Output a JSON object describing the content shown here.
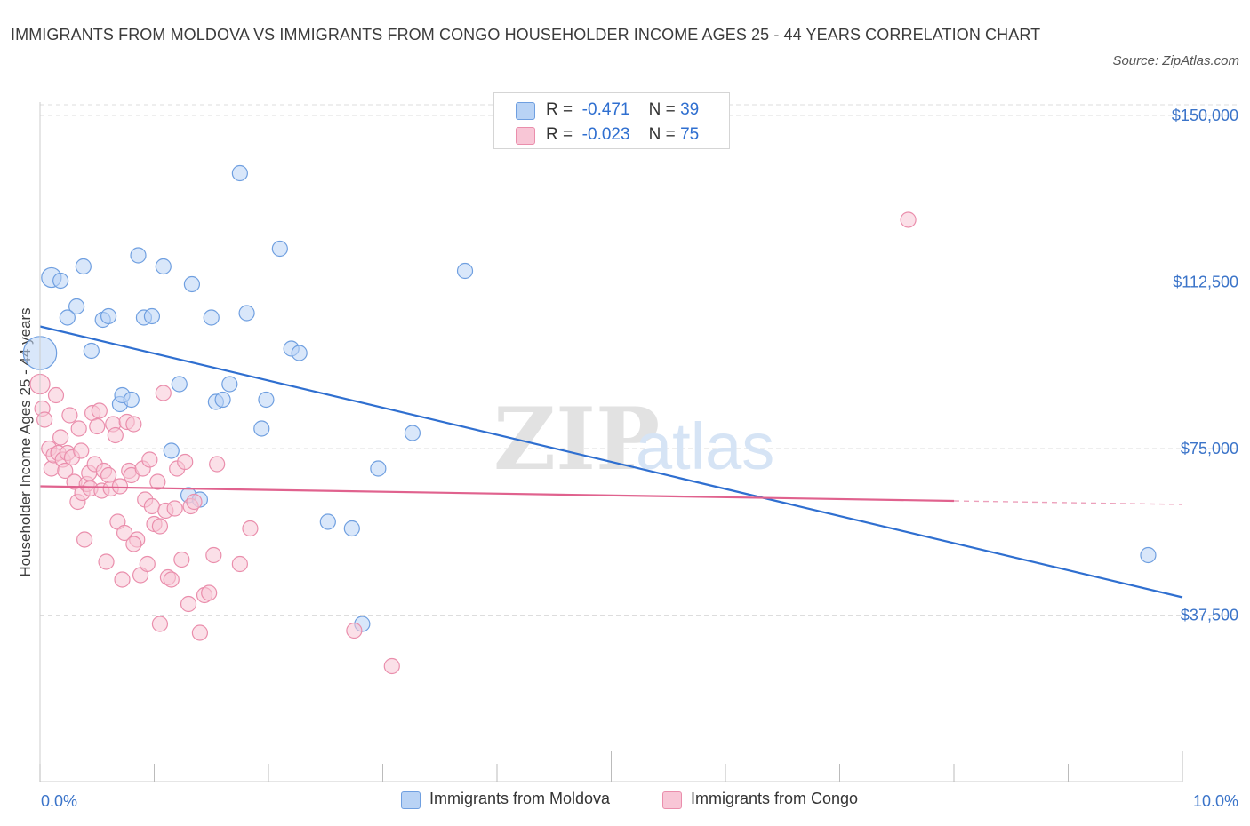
{
  "header": {
    "title": "IMMIGRANTS FROM MOLDOVA VS IMMIGRANTS FROM CONGO HOUSEHOLDER INCOME AGES 25 - 44 YEARS CORRELATION CHART",
    "source": "Source: ZipAtlas.com"
  },
  "watermark": {
    "zip": "ZIP",
    "atlas": "atlas"
  },
  "legend": {
    "moldova": {
      "r_label": "R =",
      "r_value": "-0.471",
      "n_label": "N =",
      "n_value": "39"
    },
    "congo": {
      "r_label": "R =",
      "r_value": "-0.023",
      "n_label": "N =",
      "n_value": "75"
    }
  },
  "colors": {
    "moldova_fill": "#b9d3f5",
    "moldova_stroke": "#6f9fe0",
    "moldova_line": "#2f6fd0",
    "congo_fill": "#f8c6d6",
    "congo_stroke": "#ea8eac",
    "congo_line": "#e0628e",
    "tick_label": "#3b74c9",
    "grid": "#dddddd"
  },
  "chart_data": {
    "type": "scatter",
    "title": "IMMIGRANTS FROM MOLDOVA VS IMMIGRANTS FROM CONGO HOUSEHOLDER INCOME AGES 25 - 44 YEARS CORRELATION CHART",
    "xlabel": "",
    "ylabel": "Householder Income Ages 25 - 44 years",
    "xlim": [
      0,
      10
    ],
    "ylim": [
      0,
      155000
    ],
    "x_unit": "%",
    "x_tick_labels": [
      "0.0%",
      "10.0%"
    ],
    "y_ticks": [
      37500,
      75000,
      112500,
      150000
    ],
    "y_tick_labels": [
      "$37,500",
      "$75,000",
      "$112,500",
      "$150,000"
    ],
    "grid": true,
    "legend_position": "top-center",
    "series": [
      {
        "name": "Immigrants from Moldova",
        "points": [
          {
            "x": 0.0,
            "y": 96500,
            "s": 2.2
          },
          {
            "x": 0.1,
            "y": 113500,
            "s": 1.3
          },
          {
            "x": 0.18,
            "y": 112800,
            "s": 1.0
          },
          {
            "x": 0.32,
            "y": 107000,
            "s": 1.0
          },
          {
            "x": 0.24,
            "y": 104500,
            "s": 1.0
          },
          {
            "x": 0.38,
            "y": 116000,
            "s": 1.0
          },
          {
            "x": 0.45,
            "y": 97000,
            "s": 1.0
          },
          {
            "x": 0.55,
            "y": 104000,
            "s": 1.0
          },
          {
            "x": 0.6,
            "y": 104800,
            "s": 1.0
          },
          {
            "x": 0.7,
            "y": 85000,
            "s": 1.0
          },
          {
            "x": 0.72,
            "y": 87000,
            "s": 1.0
          },
          {
            "x": 0.8,
            "y": 86000,
            "s": 1.0
          },
          {
            "x": 0.86,
            "y": 118500,
            "s": 1.0
          },
          {
            "x": 0.91,
            "y": 104500,
            "s": 1.0
          },
          {
            "x": 0.98,
            "y": 104800,
            "s": 1.0
          },
          {
            "x": 1.08,
            "y": 116000,
            "s": 1.0
          },
          {
            "x": 1.15,
            "y": 74500,
            "s": 1.0
          },
          {
            "x": 1.22,
            "y": 89500,
            "s": 1.0
          },
          {
            "x": 1.3,
            "y": 64500,
            "s": 1.0
          },
          {
            "x": 1.33,
            "y": 112000,
            "s": 1.0
          },
          {
            "x": 1.4,
            "y": 63500,
            "s": 1.0
          },
          {
            "x": 1.5,
            "y": 104500,
            "s": 1.0
          },
          {
            "x": 1.54,
            "y": 85500,
            "s": 1.0
          },
          {
            "x": 1.6,
            "y": 86000,
            "s": 1.0
          },
          {
            "x": 1.66,
            "y": 89500,
            "s": 1.0
          },
          {
            "x": 1.75,
            "y": 137000,
            "s": 1.0
          },
          {
            "x": 1.81,
            "y": 105500,
            "s": 1.0
          },
          {
            "x": 1.94,
            "y": 79500,
            "s": 1.0
          },
          {
            "x": 1.98,
            "y": 86000,
            "s": 1.0
          },
          {
            "x": 2.1,
            "y": 120000,
            "s": 1.0
          },
          {
            "x": 2.2,
            "y": 97500,
            "s": 1.0
          },
          {
            "x": 2.27,
            "y": 96500,
            "s": 1.0
          },
          {
            "x": 2.52,
            "y": 58500,
            "s": 1.0
          },
          {
            "x": 2.73,
            "y": 57000,
            "s": 1.0
          },
          {
            "x": 2.82,
            "y": 35500,
            "s": 1.0
          },
          {
            "x": 2.96,
            "y": 70500,
            "s": 1.0
          },
          {
            "x": 3.26,
            "y": 78500,
            "s": 1.0
          },
          {
            "x": 3.72,
            "y": 115000,
            "s": 1.0
          },
          {
            "x": 9.7,
            "y": 51000,
            "s": 1.0
          }
        ],
        "trend": {
          "x": [
            0.0,
            10.0
          ],
          "y": [
            102500,
            41500
          ]
        }
      },
      {
        "name": "Immigrants from Congo",
        "points": [
          {
            "x": 0.0,
            "y": 89500,
            "s": 1.3
          },
          {
            "x": 0.02,
            "y": 84000,
            "s": 1.0
          },
          {
            "x": 0.04,
            "y": 81500,
            "s": 1.0
          },
          {
            "x": 0.08,
            "y": 75000,
            "s": 1.0
          },
          {
            "x": 0.1,
            "y": 70500,
            "s": 1.0
          },
          {
            "x": 0.12,
            "y": 73500,
            "s": 1.0
          },
          {
            "x": 0.14,
            "y": 87000,
            "s": 1.0
          },
          {
            "x": 0.16,
            "y": 74000,
            "s": 1.0
          },
          {
            "x": 0.18,
            "y": 77500,
            "s": 1.0
          },
          {
            "x": 0.2,
            "y": 72500,
            "s": 1.0
          },
          {
            "x": 0.22,
            "y": 70000,
            "s": 1.0
          },
          {
            "x": 0.24,
            "y": 74000,
            "s": 1.0
          },
          {
            "x": 0.26,
            "y": 82500,
            "s": 1.0
          },
          {
            "x": 0.28,
            "y": 73000,
            "s": 1.0
          },
          {
            "x": 0.3,
            "y": 67500,
            "s": 1.0
          },
          {
            "x": 0.33,
            "y": 63000,
            "s": 1.0
          },
          {
            "x": 0.34,
            "y": 79500,
            "s": 1.0
          },
          {
            "x": 0.36,
            "y": 74500,
            "s": 1.0
          },
          {
            "x": 0.37,
            "y": 65000,
            "s": 1.0
          },
          {
            "x": 0.39,
            "y": 54500,
            "s": 1.0
          },
          {
            "x": 0.41,
            "y": 67000,
            "s": 1.0
          },
          {
            "x": 0.43,
            "y": 69500,
            "s": 1.0
          },
          {
            "x": 0.44,
            "y": 66000,
            "s": 1.0
          },
          {
            "x": 0.46,
            "y": 83000,
            "s": 1.0
          },
          {
            "x": 0.48,
            "y": 71500,
            "s": 1.0
          },
          {
            "x": 0.5,
            "y": 80000,
            "s": 1.0
          },
          {
            "x": 0.52,
            "y": 83500,
            "s": 1.0
          },
          {
            "x": 0.54,
            "y": 65500,
            "s": 1.0
          },
          {
            "x": 0.56,
            "y": 70000,
            "s": 1.0
          },
          {
            "x": 0.58,
            "y": 49500,
            "s": 1.0
          },
          {
            "x": 0.6,
            "y": 69000,
            "s": 1.0
          },
          {
            "x": 0.62,
            "y": 66000,
            "s": 1.0
          },
          {
            "x": 0.64,
            "y": 80500,
            "s": 1.0
          },
          {
            "x": 0.66,
            "y": 78000,
            "s": 1.0
          },
          {
            "x": 0.68,
            "y": 58500,
            "s": 1.0
          },
          {
            "x": 0.7,
            "y": 66500,
            "s": 1.0
          },
          {
            "x": 0.72,
            "y": 45500,
            "s": 1.0
          },
          {
            "x": 0.74,
            "y": 56000,
            "s": 1.0
          },
          {
            "x": 0.76,
            "y": 81000,
            "s": 1.0
          },
          {
            "x": 0.78,
            "y": 70000,
            "s": 1.0
          },
          {
            "x": 0.8,
            "y": 69000,
            "s": 1.0
          },
          {
            "x": 0.82,
            "y": 80500,
            "s": 1.0
          },
          {
            "x": 0.85,
            "y": 54500,
            "s": 1.0
          },
          {
            "x": 0.88,
            "y": 46500,
            "s": 1.0
          },
          {
            "x": 0.9,
            "y": 70500,
            "s": 1.0
          },
          {
            "x": 0.92,
            "y": 63500,
            "s": 1.0
          },
          {
            "x": 0.94,
            "y": 49000,
            "s": 1.0
          },
          {
            "x": 0.96,
            "y": 72500,
            "s": 1.0
          },
          {
            "x": 0.98,
            "y": 62000,
            "s": 1.0
          },
          {
            "x": 1.0,
            "y": 58000,
            "s": 1.0
          },
          {
            "x": 1.03,
            "y": 67500,
            "s": 1.0
          },
          {
            "x": 1.05,
            "y": 57500,
            "s": 1.0
          },
          {
            "x": 1.08,
            "y": 87500,
            "s": 1.0
          },
          {
            "x": 1.1,
            "y": 61000,
            "s": 1.0
          },
          {
            "x": 1.12,
            "y": 46000,
            "s": 1.0
          },
          {
            "x": 1.15,
            "y": 45500,
            "s": 1.0
          },
          {
            "x": 1.18,
            "y": 61500,
            "s": 1.0
          },
          {
            "x": 1.05,
            "y": 35500,
            "s": 1.0
          },
          {
            "x": 1.2,
            "y": 70500,
            "s": 1.0
          },
          {
            "x": 1.24,
            "y": 50000,
            "s": 1.0
          },
          {
            "x": 1.27,
            "y": 72000,
            "s": 1.0
          },
          {
            "x": 1.3,
            "y": 40000,
            "s": 1.0
          },
          {
            "x": 1.32,
            "y": 62000,
            "s": 1.0
          },
          {
            "x": 1.35,
            "y": 63000,
            "s": 1.0
          },
          {
            "x": 1.4,
            "y": 33500,
            "s": 1.0
          },
          {
            "x": 1.44,
            "y": 42000,
            "s": 1.0
          },
          {
            "x": 1.48,
            "y": 42500,
            "s": 1.0
          },
          {
            "x": 1.52,
            "y": 51000,
            "s": 1.0
          },
          {
            "x": 1.75,
            "y": 49000,
            "s": 1.0
          },
          {
            "x": 1.84,
            "y": 57000,
            "s": 1.0
          },
          {
            "x": 2.75,
            "y": 34000,
            "s": 1.0
          },
          {
            "x": 3.08,
            "y": 26000,
            "s": 1.0
          },
          {
            "x": 7.6,
            "y": 126500,
            "s": 1.0
          },
          {
            "x": 1.55,
            "y": 71500,
            "s": 1.0
          },
          {
            "x": 0.82,
            "y": 53500,
            "s": 1.0
          }
        ],
        "trend": {
          "x": [
            0.0,
            8.0
          ],
          "y": [
            66500,
            63200
          ],
          "dashed_to": {
            "x": 10.0,
            "y": 62400
          }
        }
      }
    ]
  }
}
